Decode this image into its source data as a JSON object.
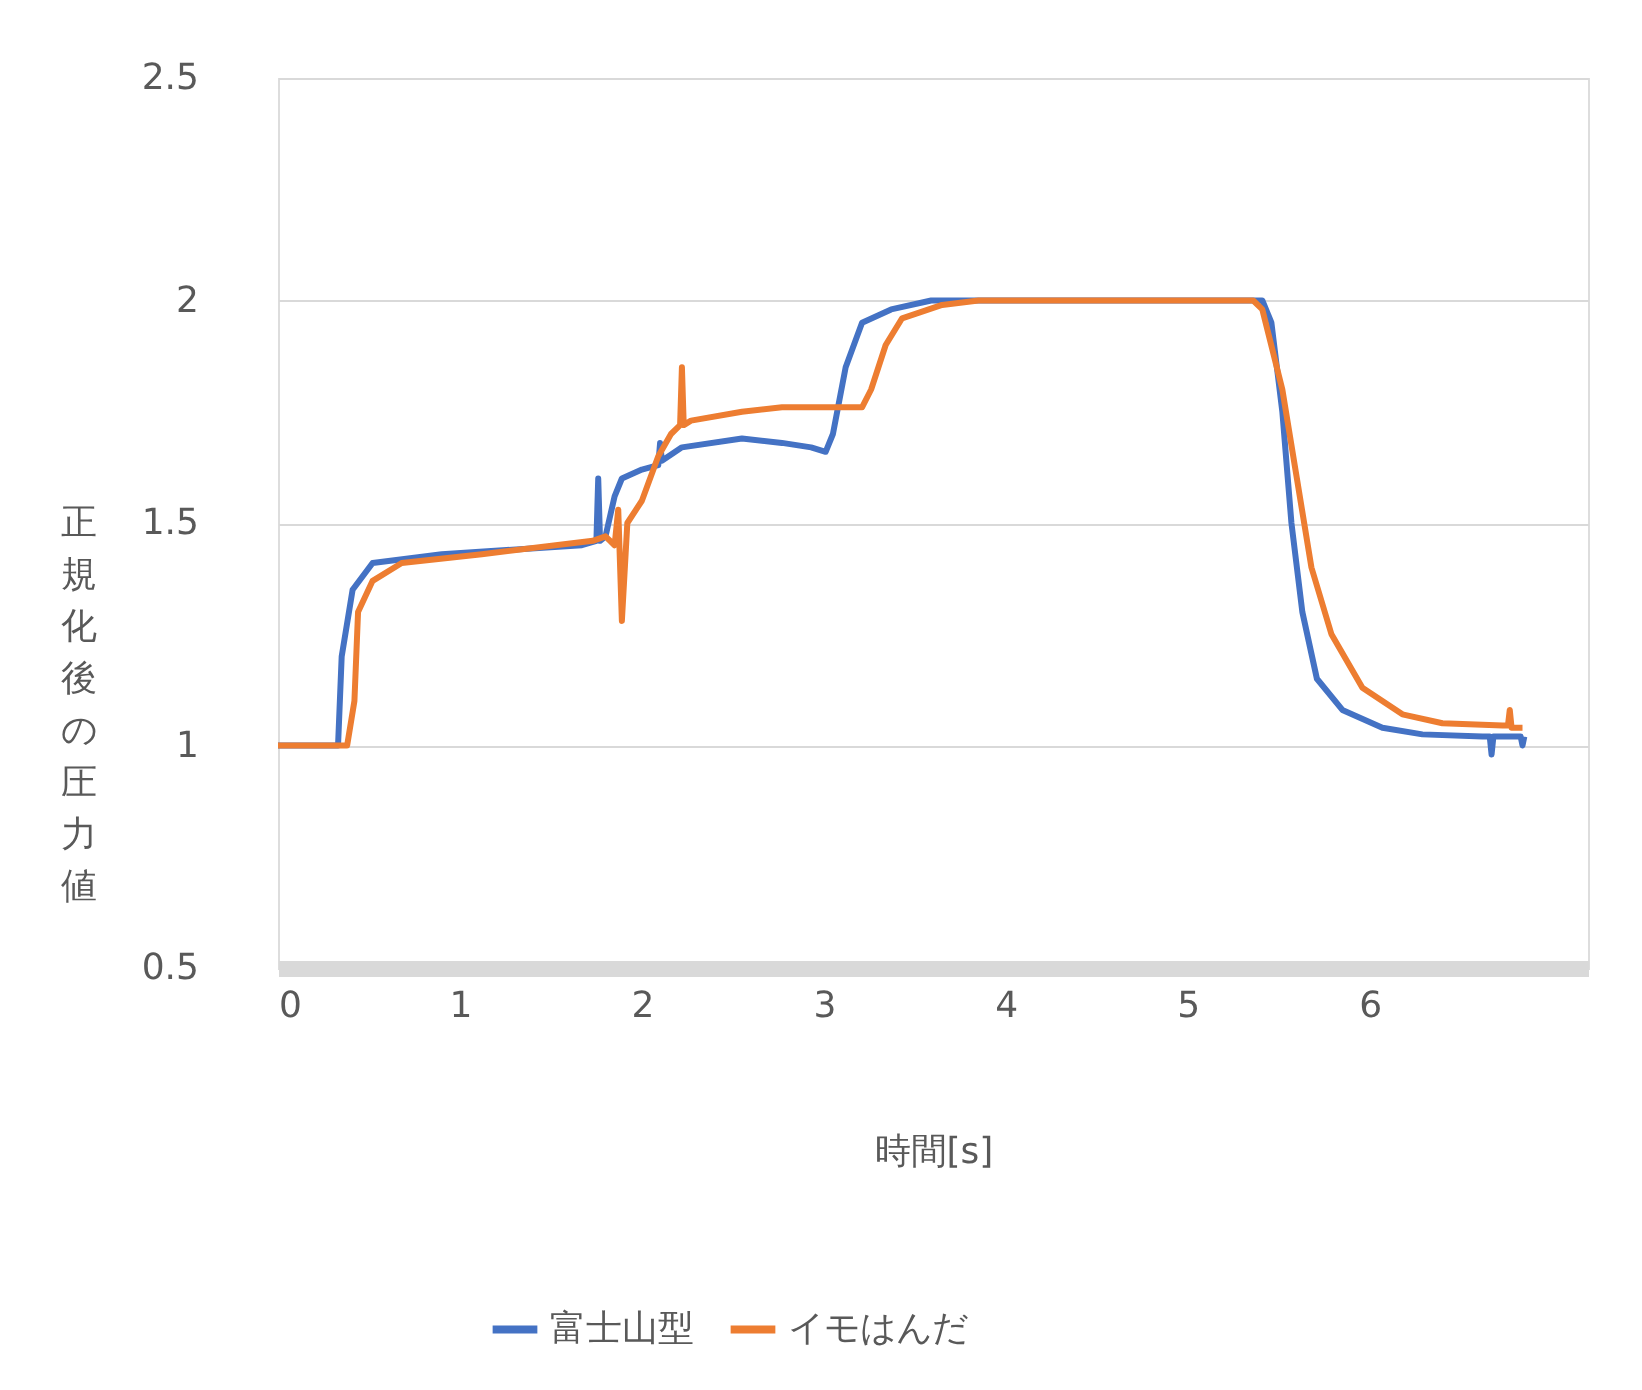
{
  "chart_data": {
    "type": "line",
    "xlabel": "時間[s]",
    "ylabel": "正規化後の圧力値",
    "xlim": [
      0,
      7.2
    ],
    "xticks": [
      0,
      1,
      2,
      3,
      4,
      5,
      6
    ],
    "ylim": [
      0.5,
      2.5
    ],
    "yticks": [
      0.5,
      1,
      1.5,
      2,
      2.5
    ],
    "grid": "y",
    "legend": "bottom",
    "line_style": "solid",
    "marker": "none",
    "series": [
      {
        "name": "富士山型",
        "color": "#4472c4",
        "x": [
          0,
          0.3,
          0.33,
          0.35,
          0.41,
          0.52,
          0.9,
          1.67,
          1.75,
          1.76,
          1.77,
          1.8,
          1.85,
          1.89,
          2.0,
          2.09,
          2.1,
          2.11,
          2.22,
          2.55,
          2.77,
          2.93,
          3.01,
          3.05,
          3.12,
          3.21,
          3.37,
          3.59,
          5.41,
          5.46,
          5.52,
          5.57,
          5.63,
          5.71,
          5.85,
          6.07,
          6.29,
          6.62,
          6.66,
          6.67,
          6.68,
          6.73,
          6.83,
          6.84,
          6.85
        ],
        "values": [
          1.0,
          1.0,
          1.0,
          1.2,
          1.35,
          1.41,
          1.43,
          1.45,
          1.46,
          1.6,
          1.46,
          1.47,
          1.56,
          1.6,
          1.62,
          1.63,
          1.68,
          1.64,
          1.67,
          1.69,
          1.68,
          1.67,
          1.66,
          1.7,
          1.85,
          1.95,
          1.98,
          2.0,
          2.0,
          1.95,
          1.75,
          1.5,
          1.3,
          1.15,
          1.08,
          1.04,
          1.025,
          1.02,
          1.02,
          0.98,
          1.02,
          1.02,
          1.02,
          1.0,
          1.02
        ]
      },
      {
        "name": "イモはんだ",
        "color": "#ed7d31",
        "x": [
          0,
          0.38,
          0.42,
          0.44,
          0.52,
          0.68,
          1.12,
          1.73,
          1.8,
          1.85,
          1.87,
          1.89,
          1.92,
          2.0,
          2.09,
          2.16,
          2.21,
          2.22,
          2.23,
          2.27,
          2.55,
          2.77,
          3.21,
          3.26,
          3.34,
          3.43,
          3.65,
          3.85,
          5.36,
          5.41,
          5.52,
          5.6,
          5.68,
          5.79,
          5.96,
          6.18,
          6.4,
          6.73,
          6.76,
          6.77,
          6.78,
          6.84
        ],
        "values": [
          1.0,
          1.0,
          1.1,
          1.3,
          1.37,
          1.41,
          1.43,
          1.46,
          1.47,
          1.45,
          1.53,
          1.28,
          1.5,
          1.55,
          1.65,
          1.7,
          1.72,
          1.85,
          1.72,
          1.73,
          1.75,
          1.76,
          1.76,
          1.8,
          1.9,
          1.96,
          1.99,
          2.0,
          2.0,
          1.98,
          1.8,
          1.6,
          1.4,
          1.25,
          1.13,
          1.07,
          1.05,
          1.045,
          1.045,
          1.08,
          1.04,
          1.04
        ]
      }
    ]
  }
}
